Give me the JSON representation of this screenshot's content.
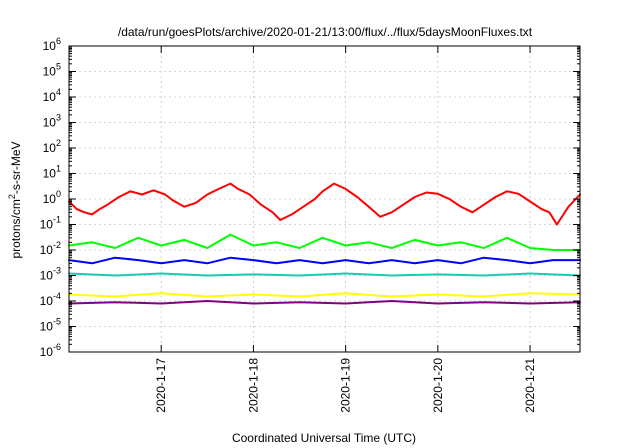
{
  "chart_data": {
    "type": "line",
    "title": "/data/run/goesPlots/archive/2020-01-21/13:00/flux/../flux/5daysMoonFluxes.txt",
    "xlabel": "Coordinated Universal Time (UTC)",
    "ylabel": "protons/cm²-s-sr-MeV",
    "ylabel_parts": [
      "protons/cm",
      "2",
      "-s-sr-MeV"
    ],
    "yscale": "log",
    "ylim": [
      1e-06,
      1000000.0
    ],
    "xlim": [
      "2020-01-16 00:00",
      "2020-01-21 13:00"
    ],
    "grid": true,
    "legend": "none",
    "x_ticks": [
      "2020-1-17",
      "2020-1-18",
      "2020-1-19",
      "2020-1-20",
      "2020-1-21"
    ],
    "y_ticks": [
      {
        "base": "10",
        "exp": "-6"
      },
      {
        "base": "10",
        "exp": "-5"
      },
      {
        "base": "10",
        "exp": "-4"
      },
      {
        "base": "10",
        "exp": "-3"
      },
      {
        "base": "10",
        "exp": "-2"
      },
      {
        "base": "10",
        "exp": "-1"
      },
      {
        "base": "10",
        "exp": "0"
      },
      {
        "base": "10",
        "exp": "1"
      },
      {
        "base": "10",
        "exp": "2"
      },
      {
        "base": "10",
        "exp": "3"
      },
      {
        "base": "10",
        "exp": "4"
      },
      {
        "base": "10",
        "exp": "5"
      },
      {
        "base": "10",
        "exp": "6"
      }
    ],
    "series": [
      {
        "color": "#ff0000",
        "x": [
          "2020-01-16 00:00",
          "2020-01-16 02:00",
          "2020-01-16 04:00",
          "2020-01-16 06:00",
          "2020-01-16 08:00",
          "2020-01-16 10:00",
          "2020-01-16 13:00",
          "2020-01-16 16:00",
          "2020-01-16 19:00",
          "2020-01-16 22:00",
          "2020-01-17 01:00",
          "2020-01-17 03:00",
          "2020-01-17 06:00",
          "2020-01-17 09:00",
          "2020-01-17 12:00",
          "2020-01-17 15:00",
          "2020-01-17 18:00",
          "2020-01-17 20:00",
          "2020-01-17 23:00",
          "2020-01-18 02:00",
          "2020-01-18 05:00",
          "2020-01-18 07:00",
          "2020-01-18 10:00",
          "2020-01-18 13:00",
          "2020-01-18 16:00",
          "2020-01-18 18:00",
          "2020-01-18 21:00",
          "2020-01-19 00:00",
          "2020-01-19 03:00",
          "2020-01-19 06:00",
          "2020-01-19 09:00",
          "2020-01-19 12:00",
          "2020-01-19 15:00",
          "2020-01-19 18:00",
          "2020-01-19 21:00",
          "2020-01-20 00:00",
          "2020-01-20 03:00",
          "2020-01-20 06:00",
          "2020-01-20 09:00",
          "2020-01-20 12:00",
          "2020-01-20 15:00",
          "2020-01-20 18:00",
          "2020-01-20 21:00",
          "2020-01-21 00:00",
          "2020-01-21 03:00",
          "2020-01-21 05:00",
          "2020-01-21 07:00",
          "2020-01-21 10:00",
          "2020-01-21 13:00"
        ],
        "values": [
          0.8,
          0.4,
          0.3,
          0.25,
          0.4,
          0.6,
          1.2,
          2.0,
          1.5,
          2.2,
          1.5,
          0.9,
          0.5,
          0.7,
          1.5,
          2.5,
          4.0,
          2.5,
          1.5,
          0.6,
          0.3,
          0.15,
          0.25,
          0.5,
          1.0,
          2.0,
          4.0,
          2.5,
          1.2,
          0.5,
          0.2,
          0.3,
          0.6,
          1.2,
          1.8,
          1.6,
          1.0,
          0.5,
          0.3,
          0.6,
          1.2,
          2.0,
          1.6,
          0.8,
          0.4,
          0.3,
          0.1,
          0.5,
          1.5
        ]
      },
      {
        "color": "#00ff00",
        "x": [
          "2020-01-16 00:00",
          "2020-01-16 06:00",
          "2020-01-16 12:00",
          "2020-01-16 18:00",
          "2020-01-17 00:00",
          "2020-01-17 06:00",
          "2020-01-17 12:00",
          "2020-01-17 18:00",
          "2020-01-18 00:00",
          "2020-01-18 06:00",
          "2020-01-18 12:00",
          "2020-01-18 18:00",
          "2020-01-19 00:00",
          "2020-01-19 06:00",
          "2020-01-19 12:00",
          "2020-01-19 18:00",
          "2020-01-20 00:00",
          "2020-01-20 06:00",
          "2020-01-20 12:00",
          "2020-01-20 18:00",
          "2020-01-21 00:00",
          "2020-01-21 06:00",
          "2020-01-21 13:00"
        ],
        "values": [
          0.015,
          0.02,
          0.012,
          0.03,
          0.015,
          0.025,
          0.012,
          0.04,
          0.015,
          0.02,
          0.012,
          0.03,
          0.015,
          0.02,
          0.012,
          0.025,
          0.015,
          0.02,
          0.012,
          0.03,
          0.012,
          0.01,
          0.01
        ]
      },
      {
        "color": "#0000ff",
        "x": [
          "2020-01-16 00:00",
          "2020-01-16 06:00",
          "2020-01-16 12:00",
          "2020-01-16 18:00",
          "2020-01-17 00:00",
          "2020-01-17 06:00",
          "2020-01-17 12:00",
          "2020-01-17 18:00",
          "2020-01-18 00:00",
          "2020-01-18 06:00",
          "2020-01-18 12:00",
          "2020-01-18 18:00",
          "2020-01-19 00:00",
          "2020-01-19 06:00",
          "2020-01-19 12:00",
          "2020-01-19 18:00",
          "2020-01-20 00:00",
          "2020-01-20 06:00",
          "2020-01-20 12:00",
          "2020-01-20 18:00",
          "2020-01-21 00:00",
          "2020-01-21 06:00",
          "2020-01-21 13:00"
        ],
        "values": [
          0.004,
          0.003,
          0.005,
          0.004,
          0.003,
          0.004,
          0.003,
          0.005,
          0.004,
          0.003,
          0.004,
          0.003,
          0.004,
          0.003,
          0.004,
          0.003,
          0.004,
          0.003,
          0.005,
          0.004,
          0.003,
          0.004,
          0.004
        ]
      },
      {
        "color": "#1cc9b4",
        "x": [
          "2020-01-16 00:00",
          "2020-01-16 12:00",
          "2020-01-17 00:00",
          "2020-01-17 12:00",
          "2020-01-18 00:00",
          "2020-01-18 12:00",
          "2020-01-19 00:00",
          "2020-01-19 12:00",
          "2020-01-20 00:00",
          "2020-01-20 12:00",
          "2020-01-21 00:00",
          "2020-01-21 13:00"
        ],
        "values": [
          0.0012,
          0.001,
          0.0012,
          0.001,
          0.0011,
          0.001,
          0.0012,
          0.001,
          0.0011,
          0.001,
          0.0012,
          0.001
        ]
      },
      {
        "color": "#ffff00",
        "x": [
          "2020-01-16 00:00",
          "2020-01-16 12:00",
          "2020-01-17 00:00",
          "2020-01-17 12:00",
          "2020-01-18 00:00",
          "2020-01-18 12:00",
          "2020-01-19 00:00",
          "2020-01-19 12:00",
          "2020-01-20 00:00",
          "2020-01-20 12:00",
          "2020-01-21 00:00",
          "2020-01-21 13:00"
        ],
        "values": [
          0.00018,
          0.00015,
          0.0002,
          0.00015,
          0.00018,
          0.00015,
          0.0002,
          0.00015,
          0.00018,
          0.00015,
          0.0002,
          0.00018
        ]
      },
      {
        "color": "#800080",
        "x": [
          "2020-01-16 00:00",
          "2020-01-16 12:00",
          "2020-01-17 00:00",
          "2020-01-17 12:00",
          "2020-01-18 00:00",
          "2020-01-18 12:00",
          "2020-01-19 00:00",
          "2020-01-19 12:00",
          "2020-01-20 00:00",
          "2020-01-20 12:00",
          "2020-01-21 00:00",
          "2020-01-21 13:00"
        ],
        "values": [
          8e-05,
          9e-05,
          8e-05,
          0.0001,
          8e-05,
          9e-05,
          8e-05,
          0.0001,
          8e-05,
          9e-05,
          8e-05,
          9e-05
        ]
      }
    ]
  }
}
